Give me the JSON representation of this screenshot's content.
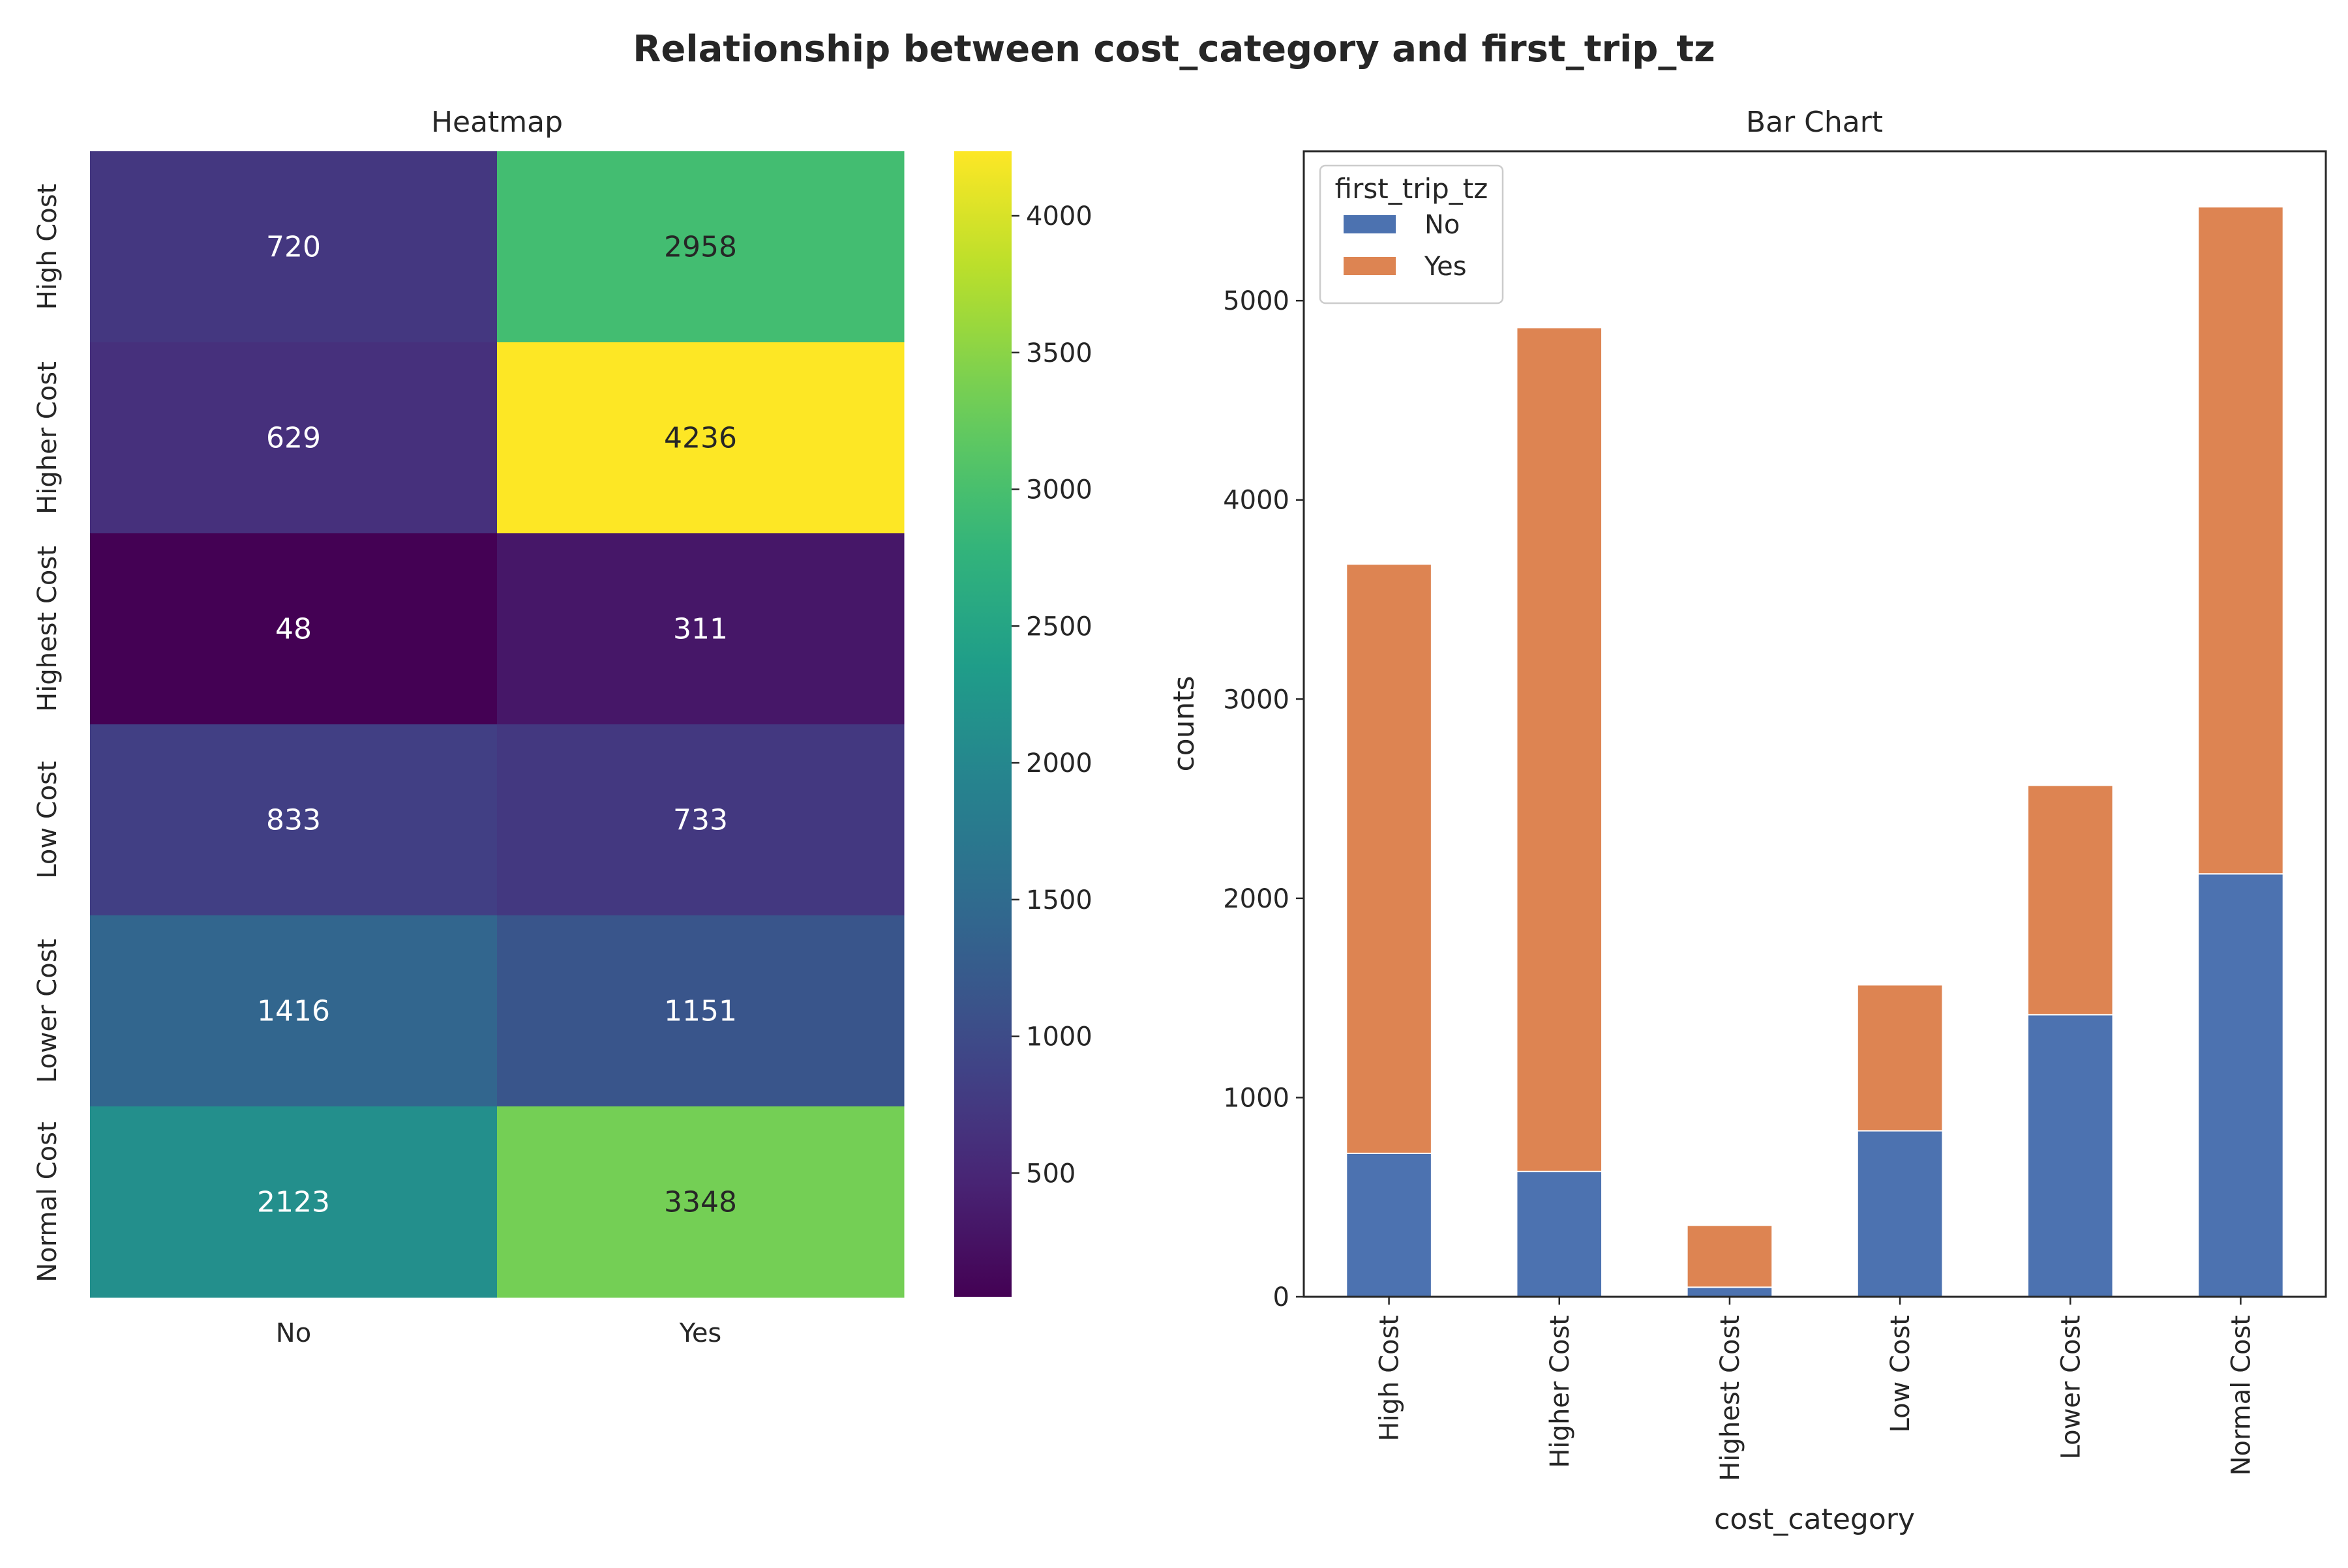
{
  "figure": {
    "title": "Relationship between cost_category and first_trip_tz"
  },
  "chart_data": [
    {
      "type": "heatmap",
      "title": "Heatmap",
      "rows": [
        "High Cost",
        "Higher Cost",
        "Highest Cost",
        "Low Cost",
        "Lower Cost",
        "Normal Cost"
      ],
      "columns": [
        "No",
        "Yes"
      ],
      "values": [
        [
          720,
          2958
        ],
        [
          629,
          4236
        ],
        [
          48,
          311
        ],
        [
          833,
          733
        ],
        [
          1416,
          1151
        ],
        [
          2123,
          3348
        ]
      ],
      "colormap": "viridis",
      "vmin": 48,
      "vmax": 4236,
      "colorbar_ticks": [
        500,
        1000,
        1500,
        2000,
        2500,
        3000,
        3500,
        4000
      ]
    },
    {
      "type": "bar",
      "stacked": true,
      "title": "Bar Chart",
      "xlabel": "cost_category",
      "ylabel": "counts",
      "categories": [
        "High Cost",
        "Higher Cost",
        "Highest Cost",
        "Low Cost",
        "Lower Cost",
        "Normal Cost"
      ],
      "series": [
        {
          "name": "No",
          "values": [
            720,
            629,
            48,
            833,
            1416,
            2123
          ],
          "color": "#4c72b0"
        },
        {
          "name": "Yes",
          "values": [
            2958,
            4236,
            311,
            733,
            1151,
            3348
          ],
          "color": "#dd8452"
        }
      ],
      "ylim": [
        0,
        5750
      ],
      "yticks": [
        0,
        1000,
        2000,
        3000,
        4000,
        5000
      ],
      "legend": {
        "title": "first_trip_tz",
        "position": "upper left"
      },
      "grid": false
    }
  ]
}
